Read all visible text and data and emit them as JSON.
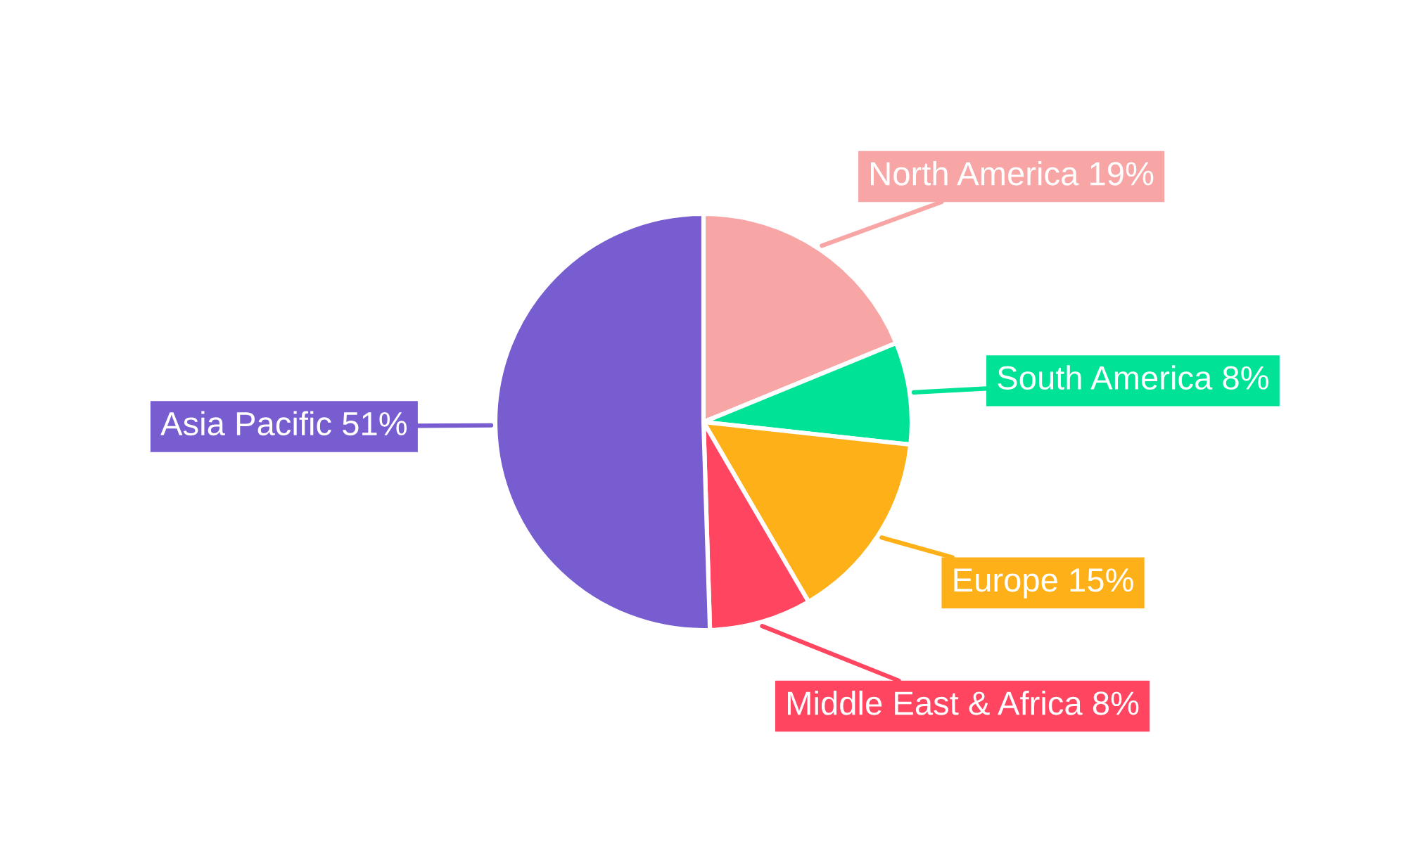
{
  "chart_data": {
    "type": "pie",
    "categories": [
      "North America",
      "South America",
      "Europe",
      "Middle East & Africa",
      "Asia Pacific"
    ],
    "values": [
      19,
      8,
      15,
      8,
      51
    ],
    "colors": [
      "#f8a5a6",
      "#00e396",
      "#feb019",
      "#ff4560",
      "#775dd0"
    ],
    "value_labels": [
      "19%",
      "8%",
      "15%",
      "8%",
      "51%"
    ]
  }
}
